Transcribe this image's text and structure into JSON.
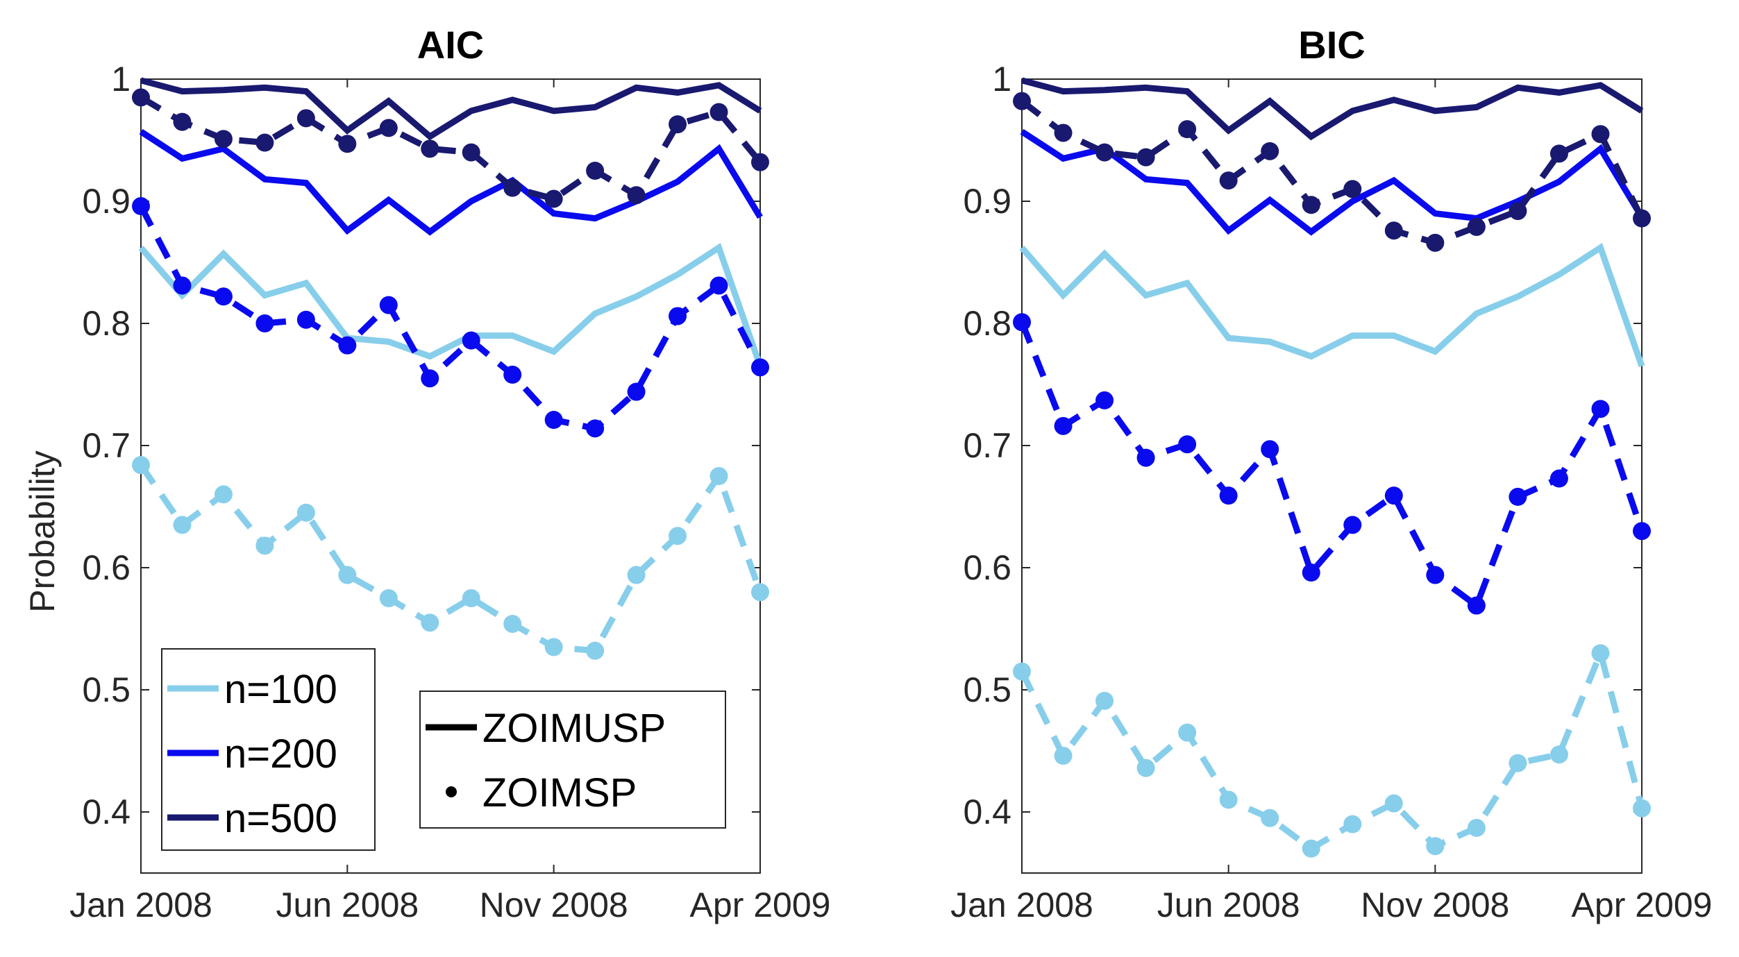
{
  "colors": {
    "n100": "#87ceeb",
    "n200": "#0a0aee",
    "n500": "#191970"
  },
  "legend_n": [
    {
      "label": "n=100",
      "color": "#87ceeb"
    },
    {
      "label": "n=200",
      "color": "#0a0aee"
    },
    {
      "label": "n=500",
      "color": "#191970"
    }
  ],
  "legend_model": [
    {
      "label": "ZOIMUSP",
      "style": "line"
    },
    {
      "label": "ZOIMSP",
      "style": "dot"
    }
  ],
  "chart_data": [
    {
      "type": "line",
      "title": "AIC",
      "xlabel": "",
      "ylabel": "Probability",
      "xlim": [
        0,
        15
      ],
      "ylim": [
        0.35,
        1.0
      ],
      "xticks": [
        0,
        5,
        10,
        15
      ],
      "xtick_labels": [
        "Jan 2008",
        "Jun 2008",
        "Nov 2008",
        "Apr 2009"
      ],
      "yticks": [
        0.4,
        0.5,
        0.6,
        0.7,
        0.8,
        0.9,
        1.0
      ],
      "ytick_labels": [
        "0.4",
        "0.5",
        "0.6",
        "0.7",
        "0.8",
        "0.9",
        "1"
      ],
      "x": [
        0,
        1,
        2,
        3,
        4,
        5,
        6,
        7,
        8,
        9,
        10,
        11,
        12,
        13,
        14,
        15
      ],
      "series": [
        {
          "name": "ZOIMUSP n=100",
          "n": "n100",
          "style": "solid",
          "values": [
            0.862,
            0.823,
            0.857,
            0.823,
            0.833,
            0.788,
            0.785,
            0.773,
            0.79,
            0.79,
            0.777,
            0.808,
            0.822,
            0.84,
            0.862,
            0.765
          ]
        },
        {
          "name": "ZOIMUSP n=200",
          "n": "n200",
          "style": "solid",
          "values": [
            0.957,
            0.935,
            0.943,
            0.918,
            0.915,
            0.876,
            0.901,
            0.875,
            0.9,
            0.917,
            0.89,
            0.886,
            0.9,
            0.916,
            0.943,
            0.887
          ]
        },
        {
          "name": "ZOIMUSP n=500",
          "n": "n500",
          "style": "solid",
          "values": [
            0.999,
            0.99,
            0.991,
            0.993,
            0.99,
            0.958,
            0.982,
            0.953,
            0.974,
            0.983,
            0.974,
            0.977,
            0.993,
            0.989,
            0.995,
            0.974
          ]
        },
        {
          "name": "ZOIMSP n=100",
          "n": "n100",
          "style": "dashed",
          "values": [
            0.684,
            0.635,
            0.66,
            0.618,
            0.645,
            0.594,
            0.575,
            0.555,
            0.575,
            0.554,
            0.535,
            0.532,
            0.594,
            0.626,
            0.675,
            0.58
          ]
        },
        {
          "name": "ZOIMSP n=200",
          "n": "n200",
          "style": "dashed",
          "values": [
            0.896,
            0.831,
            0.822,
            0.8,
            0.803,
            0.782,
            0.815,
            0.755,
            0.786,
            0.758,
            0.721,
            0.714,
            0.744,
            0.806,
            0.831,
            0.764
          ]
        },
        {
          "name": "ZOIMSP n=500",
          "n": "n500",
          "style": "dashed",
          "values": [
            0.985,
            0.965,
            0.951,
            0.948,
            0.968,
            0.947,
            0.96,
            0.943,
            0.94,
            0.911,
            0.902,
            0.925,
            0.905,
            0.963,
            0.973,
            0.932
          ]
        }
      ]
    },
    {
      "type": "line",
      "title": "BIC",
      "xlabel": "",
      "ylabel": "",
      "xlim": [
        0,
        15
      ],
      "ylim": [
        0.35,
        1.0
      ],
      "xticks": [
        0,
        5,
        10,
        15
      ],
      "xtick_labels": [
        "Jan 2008",
        "Jun 2008",
        "Nov 2008",
        "Apr 2009"
      ],
      "yticks": [
        0.4,
        0.5,
        0.6,
        0.7,
        0.8,
        0.9,
        1.0
      ],
      "ytick_labels": [
        "0.4",
        "0.5",
        "0.6",
        "0.7",
        "0.8",
        "0.9",
        "1"
      ],
      "x": [
        0,
        1,
        2,
        3,
        4,
        5,
        6,
        7,
        8,
        9,
        10,
        11,
        12,
        13,
        14,
        15
      ],
      "series": [
        {
          "name": "ZOIMUSP n=100",
          "n": "n100",
          "style": "solid",
          "values": [
            0.862,
            0.823,
            0.857,
            0.823,
            0.833,
            0.788,
            0.785,
            0.773,
            0.79,
            0.79,
            0.777,
            0.808,
            0.822,
            0.84,
            0.862,
            0.765
          ]
        },
        {
          "name": "ZOIMUSP n=200",
          "n": "n200",
          "style": "solid",
          "values": [
            0.957,
            0.935,
            0.943,
            0.918,
            0.915,
            0.876,
            0.901,
            0.875,
            0.9,
            0.917,
            0.89,
            0.886,
            0.9,
            0.916,
            0.943,
            0.887
          ]
        },
        {
          "name": "ZOIMUSP n=500",
          "n": "n500",
          "style": "solid",
          "values": [
            0.999,
            0.99,
            0.991,
            0.993,
            0.99,
            0.958,
            0.982,
            0.953,
            0.974,
            0.983,
            0.974,
            0.977,
            0.993,
            0.989,
            0.995,
            0.974
          ]
        },
        {
          "name": "ZOIMSP n=100",
          "n": "n100",
          "style": "dashed",
          "values": [
            0.515,
            0.446,
            0.491,
            0.436,
            0.465,
            0.41,
            0.395,
            0.37,
            0.39,
            0.407,
            0.372,
            0.387,
            0.44,
            0.447,
            0.53,
            0.403
          ]
        },
        {
          "name": "ZOIMSP n=200",
          "n": "n200",
          "style": "dashed",
          "values": [
            0.801,
            0.716,
            0.737,
            0.69,
            0.701,
            0.659,
            0.697,
            0.596,
            0.635,
            0.659,
            0.594,
            0.569,
            0.658,
            0.673,
            0.73,
            0.63
          ]
        },
        {
          "name": "ZOIMSP n=500",
          "n": "n500",
          "style": "dashed",
          "values": [
            0.982,
            0.956,
            0.94,
            0.936,
            0.959,
            0.917,
            0.941,
            0.897,
            0.91,
            0.876,
            0.866,
            0.879,
            0.892,
            0.939,
            0.955,
            0.886
          ]
        }
      ]
    }
  ]
}
